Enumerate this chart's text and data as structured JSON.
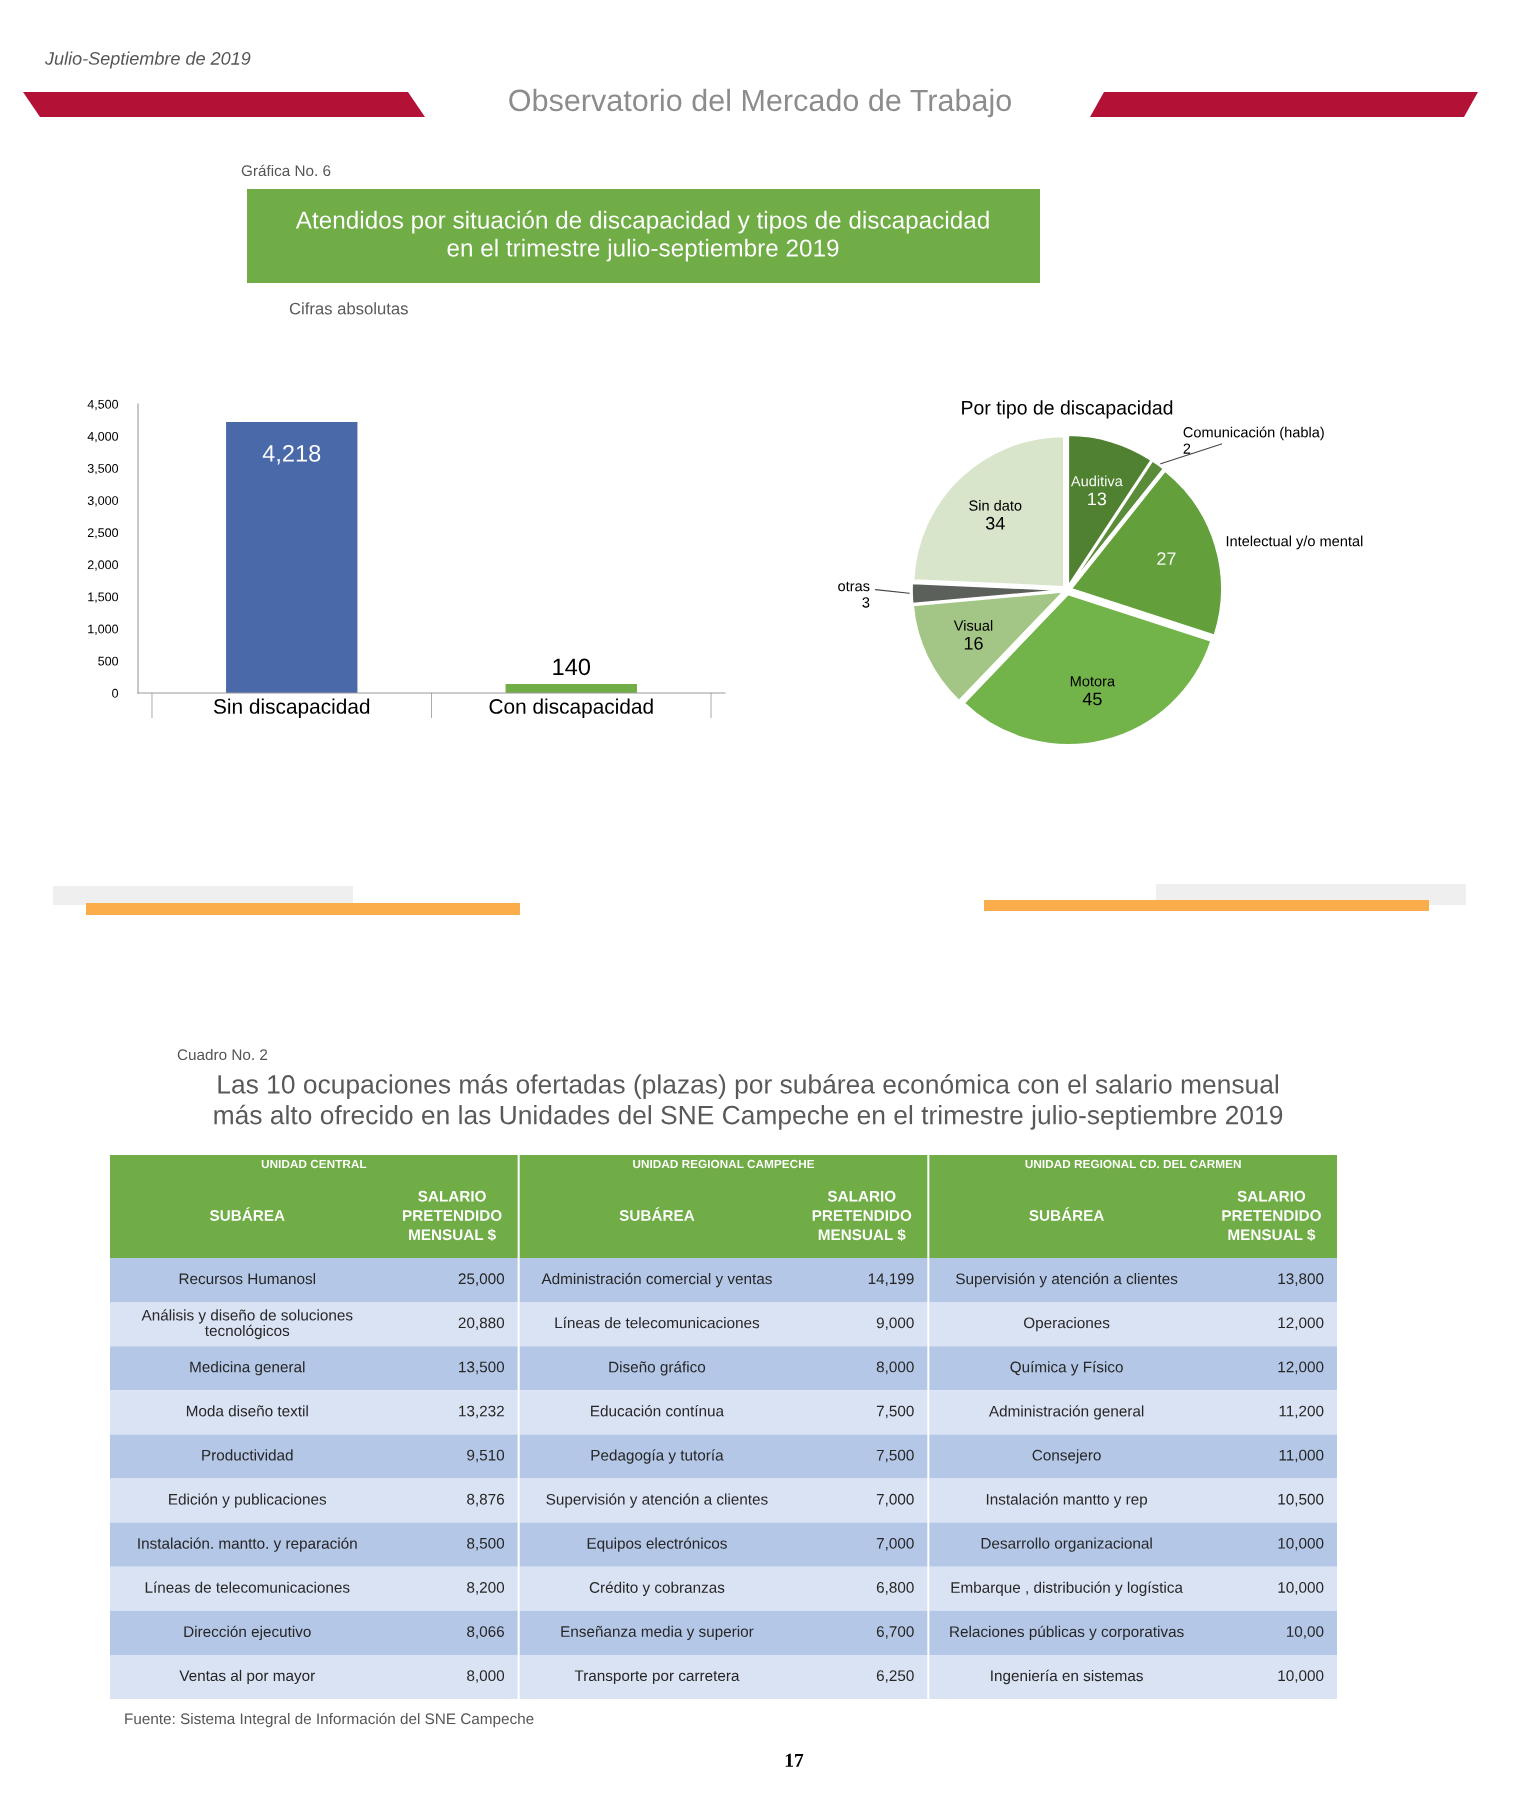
{
  "chart_data": [
    {
      "type": "bar",
      "title": "Atendidos por situación de discapacidad y tipos de discapacidad en el trimestre julio-septiembre 2019",
      "subtitle": "Cifras absolutas",
      "categories": [
        "Sin discapacidad",
        "Con discapacidad"
      ],
      "values": [
        4218,
        140
      ],
      "colors": [
        "#4a69a9",
        "#70ad47"
      ],
      "value_labels": [
        "4,218",
        "140"
      ],
      "ylim": [
        0,
        4500
      ],
      "yticks": [
        0,
        500,
        {
          "value": 1000,
          "label": "1,000"
        },
        {
          "value": 1500,
          "label": "1,500"
        },
        {
          "value": 2000,
          "label": "2,000"
        },
        {
          "value": 2500,
          "label": "2,500"
        },
        {
          "value": 3000,
          "label": "3,000"
        },
        {
          "value": 3500,
          "label": "3,500"
        },
        {
          "value": 4000,
          "label": "4,000"
        },
        {
          "value": 4500,
          "label": "4,500"
        }
      ],
      "grid": false,
      "annotations": [
        "Julio-Septiembre de 2019",
        "Observatorio del Mercado de Trabajo",
        "Gráfica No. 6"
      ]
    },
    {
      "type": "pie",
      "title": "Por tipo de discapacidad",
      "categories": [
        "Auditiva",
        "Comunicación (habla)",
        "Intelectual y/o mental",
        "Motora",
        "Visual",
        "otras",
        "Sin dato"
      ],
      "values": [
        13,
        2,
        27,
        45,
        16,
        3,
        34
      ],
      "colors": [
        "#4f8131",
        "#5b8c3a",
        "#63a03c",
        "#72b34a",
        "#a3c585",
        "#5c605b",
        "#d9e5cb"
      ],
      "data_labels": true
    },
    {
      "type": "other",
      "title": "Las 10 ocupaciones más ofertadas (plazas) por subárea económica con el salario mensual más alto ofrecido en las Unidades del SNE Campeche en el trimestre julio-septiembre 2019",
      "annotations": [
        "Cuadro No. 2",
        "UNIDAD CENTRAL",
        "UNIDAD REGIONAL CAMPECHE",
        "UNIDAD REGIONAL CD. DEL CARMEN",
        "SUBÁREA",
        "SALARIO PRETENDIDO MENSUAL $",
        "SUBÁREA",
        "SALARIO PRETENDIDO MENSUAL $",
        "SUBÁREA",
        "SALARIO PRETENDIDO MENSUAL $",
        "Recursos Humanosl",
        "25,000",
        "Administración comercial y ventas",
        "14,199",
        "Supervisión y atención a clientes",
        "13,800",
        "Análisis y diseño de soluciones tecnológicos",
        "20,880",
        "Líneas de telecomunicaciones",
        "9,000",
        "Operaciones",
        "12,000",
        "Medicina general",
        "13,500",
        "Diseño gráfico",
        "8,000",
        "Química y Físico",
        "12,000",
        "Moda diseño textil",
        "13,232",
        "Educación contínua",
        "7,500",
        "Administración general",
        "11,200",
        "Productividad",
        "9,510",
        "Pedagogía y tutoría",
        "7,500",
        "Consejero",
        "11,000",
        "Edición y publicaciones",
        "8,876",
        "Supervisión y atención a clientes",
        "7,000",
        "Instalación mantto y rep",
        "10,500",
        "Instalación. mantto. y reparación",
        "8,500",
        "Equipos electrónicos",
        "7,000",
        "Desarrollo organizacional",
        "10,000",
        "Líneas de telecomunicaciones",
        "8,200",
        "Crédito y cobranzas",
        "6,800",
        "Embarque , distribución y logística",
        "10,000",
        "Dirección ejecutivo",
        "8,066",
        "Enseñanza media y superior",
        "6,700",
        "Relaciones públicas y corporativas",
        "10,00",
        "Ventas al por mayor",
        "8,000",
        "Transporte por carretera",
        "6,250",
        "Ingeniería en sistemas",
        "10,000",
        "Fuente: Sistema Integral de Información del SNE Campeche",
        "17"
      ]
    }
  ]
}
